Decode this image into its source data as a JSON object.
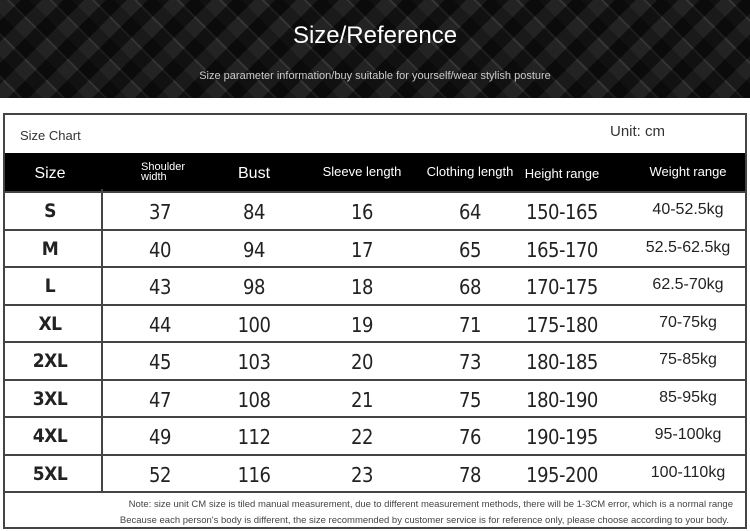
{
  "header": {
    "title": "Size/Reference",
    "subtitle": "Size parameter information/buy suitable for yourself/wear stylish posture"
  },
  "chart": {
    "caption": "Size Chart",
    "unit": "Unit: cm",
    "columns": [
      "Size",
      "Shoulder width",
      "Bust",
      "Sleeve length",
      "Clothing length",
      "Height range",
      "Weight range"
    ],
    "rows": [
      [
        "S",
        "37",
        "84",
        "16",
        "64",
        "150-165",
        "40-52.5kg"
      ],
      [
        "M",
        "40",
        "94",
        "17",
        "65",
        "165-170",
        "52.5-62.5kg"
      ],
      [
        "L",
        "43",
        "98",
        "18",
        "68",
        "170-175",
        "62.5-70kg"
      ],
      [
        "XL",
        "44",
        "100",
        "19",
        "71",
        "175-180",
        "70-75kg"
      ],
      [
        "2XL",
        "45",
        "103",
        "20",
        "73",
        "180-185",
        "75-85kg"
      ],
      [
        "3XL",
        "47",
        "108",
        "21",
        "75",
        "180-190",
        "85-95kg"
      ],
      [
        "4XL",
        "49",
        "112",
        "22",
        "76",
        "190-195",
        "95-100kg"
      ],
      [
        "5XL",
        "52",
        "116",
        "23",
        "78",
        "195-200",
        "100-110kg"
      ]
    ],
    "notes": [
      "Note: size unit CM size is tiled manual measurement, due to different measurement methods, there will be 1-3CM error, which is a normal range",
      "Because each person's body is different, the size recommended by customer service is for reference only, please choose according to your body."
    ]
  }
}
